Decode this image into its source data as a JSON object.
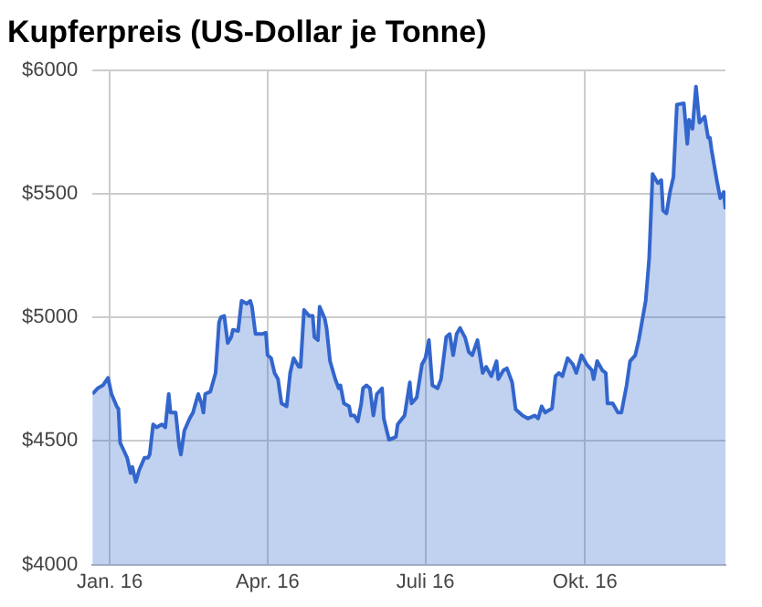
{
  "chart_data": {
    "type": "area",
    "title": "Kupferpreis (US-Dollar je Tonne)",
    "x": [
      "2015-12-22",
      "2015-12-25",
      "2015-12-28",
      "2015-12-31",
      "2016-01-02",
      "2016-01-05",
      "2016-01-06",
      "2016-01-07",
      "2016-01-11",
      "2016-01-13",
      "2016-01-14",
      "2016-01-16",
      "2016-01-18",
      "2016-01-21",
      "2016-01-23",
      "2016-01-24",
      "2016-01-26",
      "2016-01-28",
      "2016-01-31",
      "2016-02-02",
      "2016-02-04",
      "2016-02-05",
      "2016-02-08",
      "2016-02-10",
      "2016-02-11",
      "2016-02-13",
      "2016-02-16",
      "2016-02-18",
      "2016-02-21",
      "2016-02-23",
      "2016-02-24",
      "2016-02-25",
      "2016-02-28",
      "2016-03-02",
      "2016-03-04",
      "2016-03-05",
      "2016-03-07",
      "2016-03-09",
      "2016-03-11",
      "2016-03-12",
      "2016-03-15",
      "2016-03-17",
      "2016-03-20",
      "2016-03-22",
      "2016-03-23",
      "2016-03-25",
      "2016-03-29",
      "2016-03-31",
      "2016-04-01",
      "2016-04-03",
      "2016-04-05",
      "2016-04-07",
      "2016-04-09",
      "2016-04-12",
      "2016-04-14",
      "2016-04-16",
      "2016-04-19",
      "2016-04-20",
      "2016-04-22",
      "2016-04-25",
      "2016-04-27",
      "2016-04-28",
      "2016-04-30",
      "2016-05-01",
      "2016-05-04",
      "2016-05-05",
      "2016-05-07",
      "2016-05-10",
      "2016-05-12",
      "2016-05-13",
      "2016-05-15",
      "2016-05-18",
      "2016-05-19",
      "2016-05-21",
      "2016-05-23",
      "2016-05-25",
      "2016-05-26",
      "2016-05-28",
      "2016-05-30",
      "2016-06-01",
      "2016-06-03",
      "2016-06-06",
      "2016-06-07",
      "2016-06-10",
      "2016-06-14",
      "2016-06-15",
      "2016-06-19",
      "2016-06-22",
      "2016-06-23",
      "2016-06-26",
      "2016-06-29",
      "2016-07-01",
      "2016-07-03",
      "2016-07-05",
      "2016-07-08",
      "2016-07-10",
      "2016-07-13",
      "2016-07-15",
      "2016-07-17",
      "2016-07-19",
      "2016-07-21",
      "2016-07-24",
      "2016-07-26",
      "2016-07-28",
      "2016-07-31",
      "2016-08-03",
      "2016-08-05",
      "2016-08-08",
      "2016-08-11",
      "2016-08-12",
      "2016-08-15",
      "2016-08-17",
      "2016-08-20",
      "2016-08-22",
      "2016-08-26",
      "2016-08-29",
      "2016-09-02",
      "2016-09-04",
      "2016-09-06",
      "2016-09-08",
      "2016-09-12",
      "2016-09-14",
      "2016-09-16",
      "2016-09-18",
      "2016-09-21",
      "2016-09-24",
      "2016-09-26",
      "2016-09-29",
      "2016-10-02",
      "2016-10-05",
      "2016-10-06",
      "2016-10-08",
      "2016-10-11",
      "2016-10-13",
      "2016-10-14",
      "2016-10-17",
      "2016-10-20",
      "2016-10-22",
      "2016-10-25",
      "2016-10-27",
      "2016-10-30",
      "2016-11-01",
      "2016-11-05",
      "2016-11-07",
      "2016-11-09",
      "2016-11-12",
      "2016-11-14",
      "2016-11-15",
      "2016-11-17",
      "2016-11-19",
      "2016-11-21",
      "2016-11-23",
      "2016-11-27",
      "2016-11-29",
      "2016-11-30",
      "2016-12-02",
      "2016-12-04",
      "2016-12-06",
      "2016-12-09",
      "2016-12-11",
      "2016-12-12",
      "2016-12-13",
      "2016-12-16",
      "2016-12-18",
      "2016-12-20",
      "2016-12-21"
    ],
    "series": [
      {
        "color": "#3366cc",
        "values": [
          4690,
          4713,
          4725,
          4755,
          4690,
          4640,
          4630,
          4493,
          4432,
          4370,
          4395,
          4335,
          4383,
          4432,
          4432,
          4445,
          4567,
          4555,
          4567,
          4555,
          4690,
          4615,
          4615,
          4480,
          4445,
          4542,
          4590,
          4615,
          4690,
          4650,
          4615,
          4690,
          4700,
          4775,
          4980,
          5000,
          5006,
          4896,
          4920,
          4950,
          4945,
          5067,
          5055,
          5067,
          5043,
          4933,
          4933,
          4938,
          4847,
          4835,
          4775,
          4750,
          4652,
          4640,
          4775,
          4835,
          4800,
          4800,
          5030,
          5006,
          5006,
          4920,
          4908,
          5043,
          4994,
          4957,
          4823,
          4750,
          4713,
          4725,
          4652,
          4640,
          4603,
          4603,
          4579,
          4652,
          4713,
          4725,
          4713,
          4603,
          4690,
          4713,
          4591,
          4505,
          4517,
          4567,
          4603,
          4737,
          4652,
          4676,
          4810,
          4835,
          4908,
          4725,
          4713,
          4750,
          4920,
          4933,
          4847,
          4933,
          4957,
          4916,
          4860,
          4847,
          4908,
          4775,
          4800,
          4762,
          4823,
          4750,
          4786,
          4794,
          4737,
          4628,
          4603,
          4591,
          4603,
          4591,
          4640,
          4615,
          4632,
          4762,
          4775,
          4762,
          4835,
          4810,
          4775,
          4847,
          4810,
          4786,
          4750,
          4823,
          4786,
          4775,
          4652,
          4652,
          4615,
          4615,
          4725,
          4823,
          4847,
          4908,
          5067,
          5238,
          5580,
          5543,
          5555,
          5433,
          5421,
          5507,
          5568,
          5861,
          5866,
          5702,
          5800,
          5763,
          5934,
          5788,
          5812,
          5727,
          5727,
          5678,
          5555,
          5482,
          5507,
          5438
        ]
      }
    ],
    "xlim": [
      "2015-12-22",
      "2016-12-21"
    ],
    "xticks": [
      {
        "value": "2016-01-01",
        "label": "Jan. 16"
      },
      {
        "value": "2016-04-01",
        "label": "Apr. 16"
      },
      {
        "value": "2016-07-01",
        "label": "Juli 16"
      },
      {
        "value": "2016-10-01",
        "label": "Okt. 16"
      }
    ],
    "ylim": [
      4000,
      6000
    ],
    "yticks": [
      {
        "value": 4000,
        "label": "$4000"
      },
      {
        "value": 4500,
        "label": "$4500"
      },
      {
        "value": 5000,
        "label": "$5000"
      },
      {
        "value": 5500,
        "label": "$5500"
      },
      {
        "value": 6000,
        "label": "$6000"
      }
    ],
    "grid": true
  }
}
